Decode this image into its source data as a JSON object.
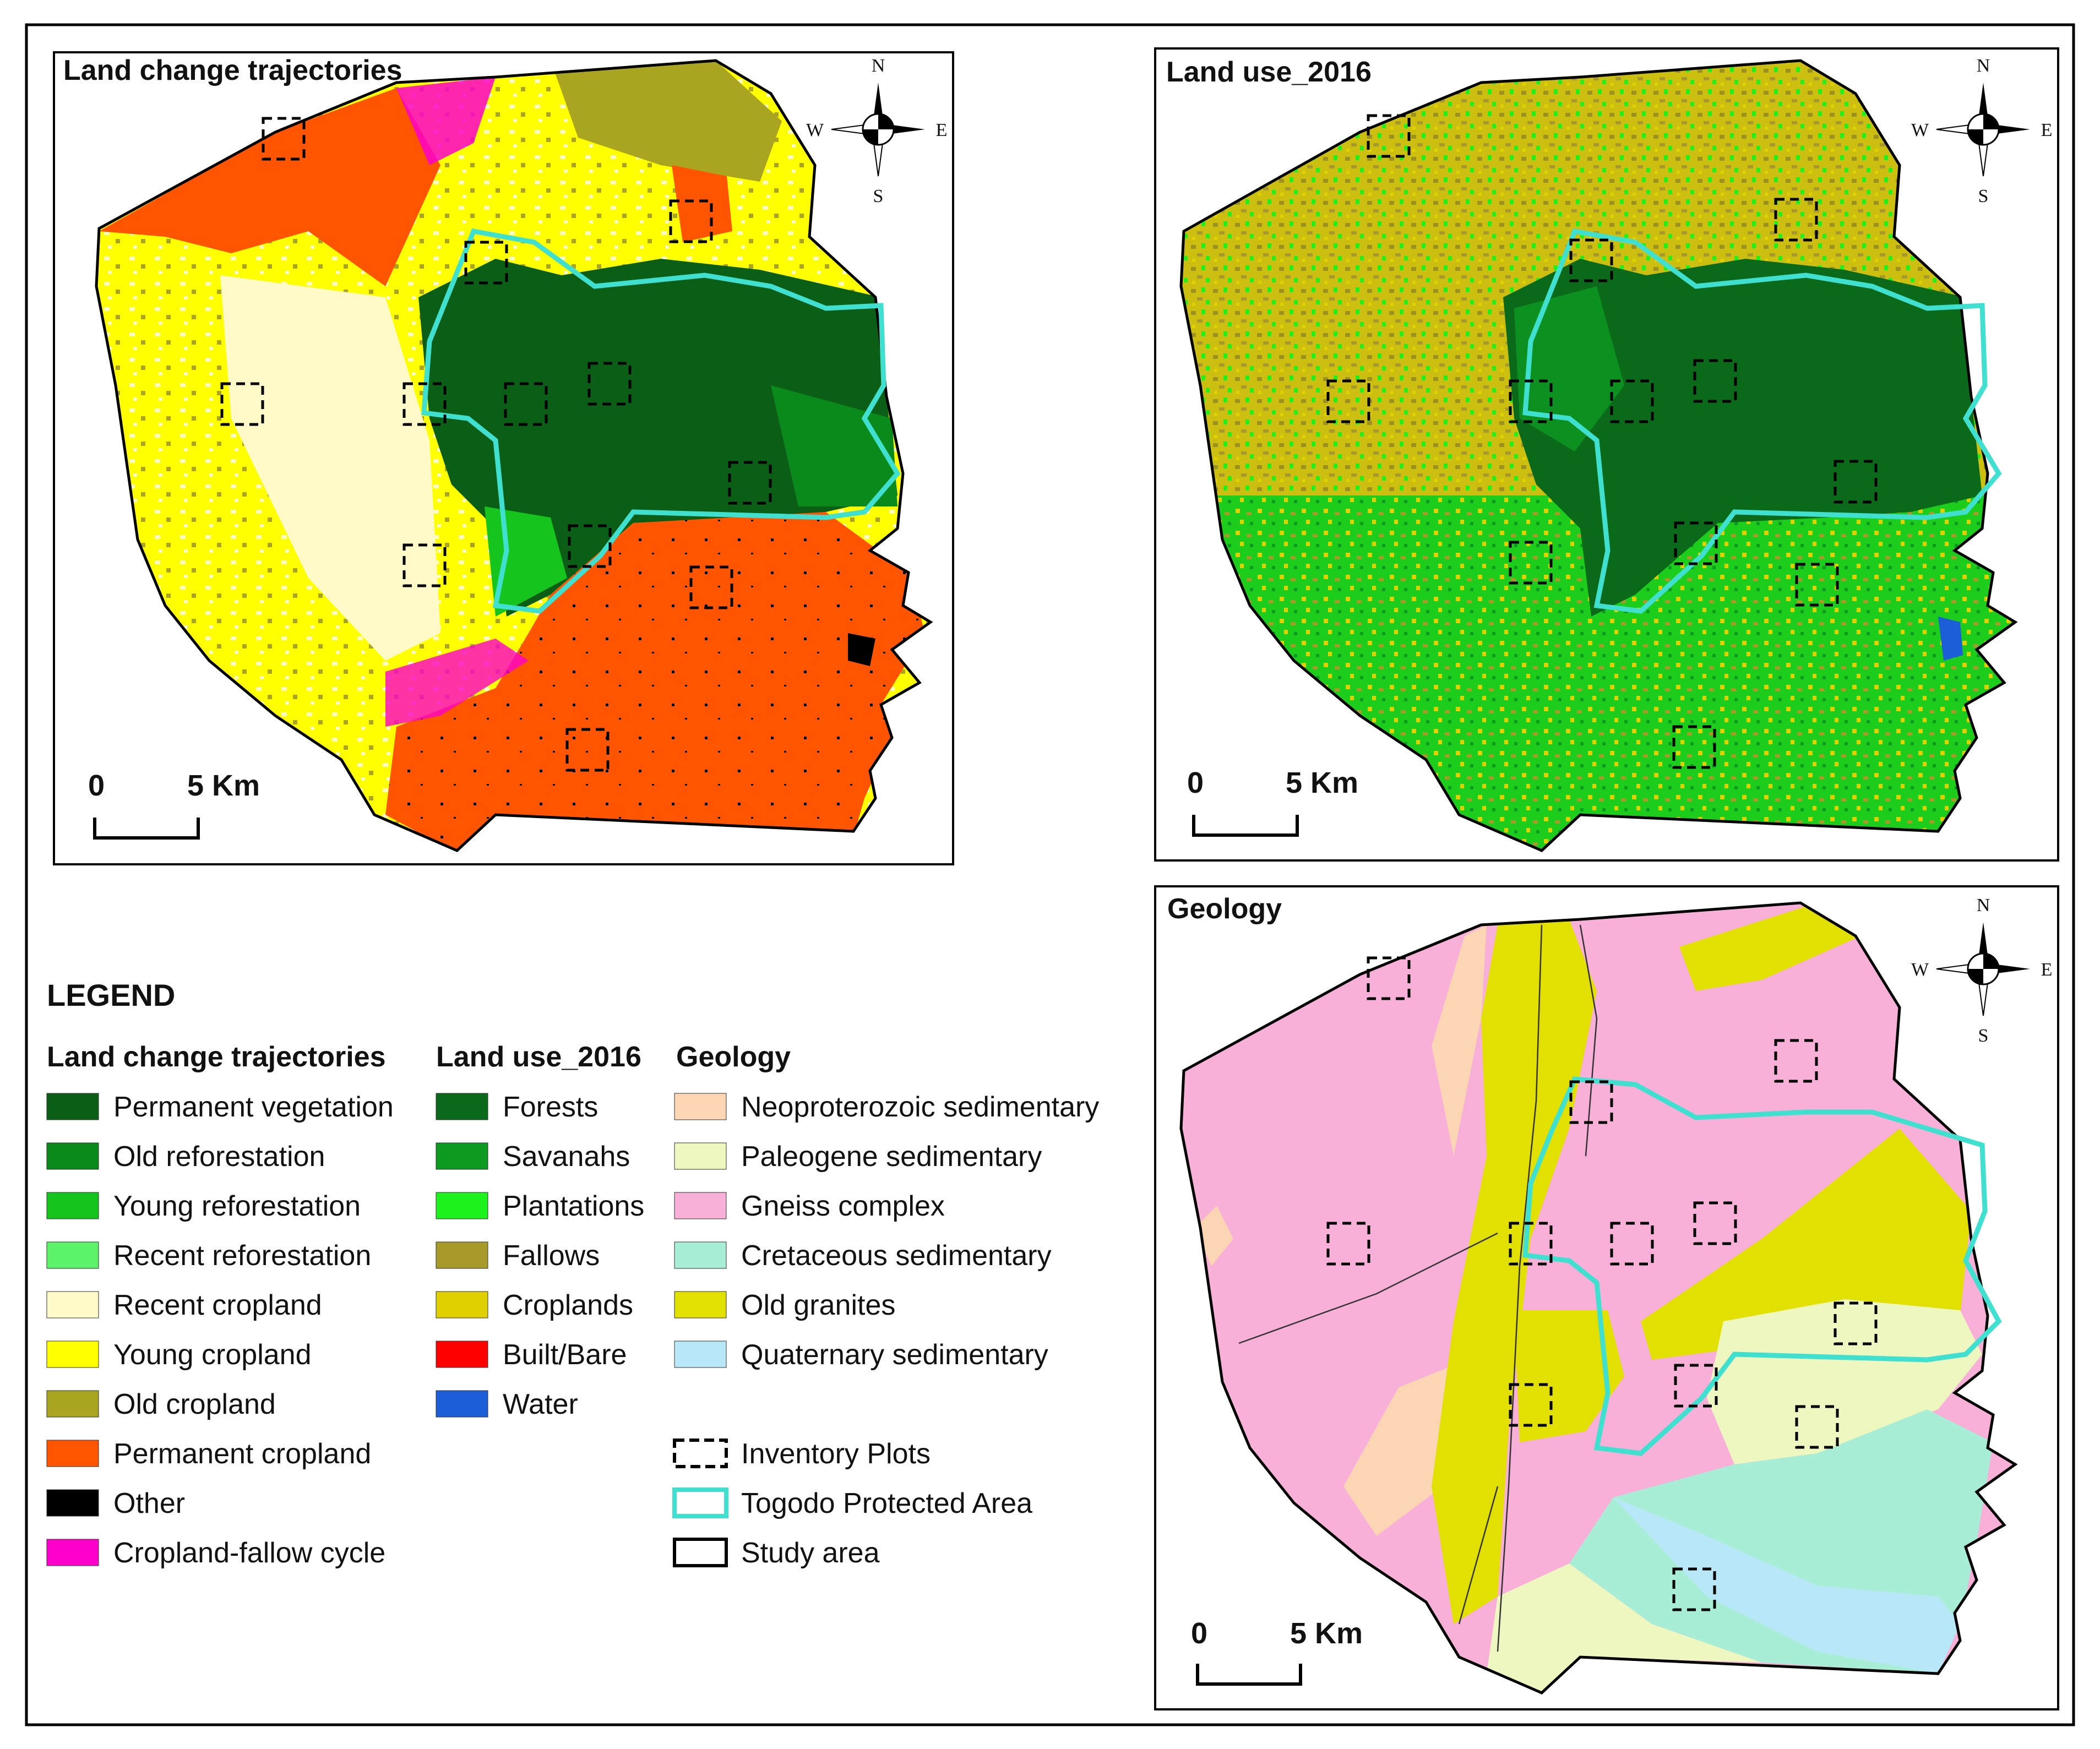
{
  "panels": {
    "trajectories": {
      "title": "Land change trajectories"
    },
    "landuse": {
      "title": "Land use_2016"
    },
    "geology": {
      "title": "Geology"
    }
  },
  "scale": {
    "zero": "0",
    "distance": "5 Km"
  },
  "compass": {
    "n": "N",
    "s": "S",
    "e": "E",
    "w": "W"
  },
  "legend": {
    "heading": "LEGEND",
    "trajectories": {
      "title": "Land change trajectories",
      "items": [
        {
          "label": "Permanent vegetation",
          "color": "#0b5e16"
        },
        {
          "label": "Old reforestation",
          "color": "#0a8a1a"
        },
        {
          "label": "Young reforestation",
          "color": "#16c41e"
        },
        {
          "label": "Recent reforestation",
          "color": "#5cf26a"
        },
        {
          "label": "Recent cropland",
          "color": "#fffac8"
        },
        {
          "label": "Young cropland",
          "color": "#ffff00"
        },
        {
          "label": "Old cropland",
          "color": "#aaa520"
        },
        {
          "label": "Permanent cropland",
          "color": "#ff5500"
        },
        {
          "label": "Other",
          "color": "#000000"
        },
        {
          "label": "Cropland-fallow cycle",
          "color": "#ff00cc"
        }
      ]
    },
    "landuse": {
      "title": "Land use_2016",
      "items": [
        {
          "label": "Forests",
          "color": "#0b6a1a"
        },
        {
          "label": "Savanahs",
          "color": "#0d9a20"
        },
        {
          "label": "Plantations",
          "color": "#1cf21c"
        },
        {
          "label": "Fallows",
          "color": "#a89a2a"
        },
        {
          "label": "Croplands",
          "color": "#e0d000"
        },
        {
          "label": "Built/Bare",
          "color": "#ff0000"
        },
        {
          "label": "Water",
          "color": "#1c5ed8"
        }
      ]
    },
    "geology": {
      "title": "Geology",
      "items": [
        {
          "label": "Neoproterozoic sedimentary",
          "color": "#fcd5b4"
        },
        {
          "label": "Paleogene sedimentary",
          "color": "#eef7c0"
        },
        {
          "label": "Gneiss complex",
          "color": "#f8b0d8"
        },
        {
          "label": "Cretaceous sedimentary",
          "color": "#a8eed6"
        },
        {
          "label": "Old granites",
          "color": "#e2e000"
        },
        {
          "label": "Quaternary sedimentary",
          "color": "#b8e8f8"
        }
      ]
    },
    "symbols": {
      "plots": "Inventory Plots",
      "protected": "Togodo Protected Area",
      "study": "Study area"
    }
  },
  "colors": {
    "protected_outline": "#40e0d0",
    "study_outline": "#000000"
  }
}
